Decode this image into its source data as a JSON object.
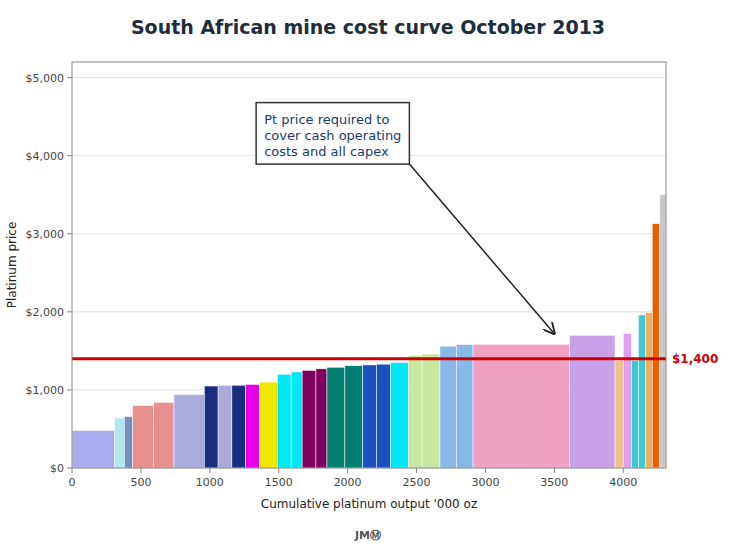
{
  "chart_data": {
    "type": "bar",
    "title": "South African mine cost curve October 2013",
    "x_label": "Cumulative platinum output '000 oz",
    "y_label": "Platinum price",
    "bins": [
      0,
      310,
      380,
      440,
      590,
      740,
      960,
      1060,
      1160,
      1260,
      1360,
      1490,
      1590,
      1670,
      1770,
      1850,
      1980,
      2110,
      2210,
      2310,
      2440,
      2540,
      2670,
      2790,
      2910,
      3610,
      3940,
      4000,
      4060,
      4110,
      4160,
      4210,
      4265,
      4310
    ],
    "values": [
      480,
      640,
      660,
      800,
      840,
      940,
      1050,
      1060,
      1060,
      1070,
      1100,
      1200,
      1230,
      1250,
      1270,
      1290,
      1310,
      1320,
      1330,
      1350,
      1440,
      1460,
      1560,
      1580,
      1585,
      1700,
      1380,
      1720,
      1380,
      1960,
      1990,
      3130,
      3500
    ],
    "colors": [
      "#aaaaee",
      "#b0e8f0",
      "#7090c0",
      "#e89090",
      "#e89090",
      "#aaaadd",
      "#1a2e80",
      "#aaaadd",
      "#1a2e80",
      "#e800e8",
      "#f0e800",
      "#00e8f8",
      "#00e8f8",
      "#800060",
      "#800060",
      "#008070",
      "#008070",
      "#1a50c0",
      "#1a50c0",
      "#00e8f8",
      "#c8e8a0",
      "#c8e8a0",
      "#88b8e8",
      "#88b8e8",
      "#f0a0c0",
      "#c8a0e8",
      "#f0c090",
      "#e0a0f0",
      "#40c8d0",
      "#40c8d0",
      "#e8b060",
      "#e86000",
      "#c8c8c8"
    ],
    "xlim": [
      0,
      4310
    ],
    "ylim": [
      0,
      5200
    ],
    "xticks": [
      0,
      500,
      1000,
      1500,
      2000,
      2500,
      3000,
      3500,
      4000
    ],
    "yticks": [
      {
        "value": 0,
        "label": "$0"
      },
      {
        "value": 1000,
        "label": "$1,000"
      },
      {
        "value": 2000,
        "label": "$2,000"
      },
      {
        "value": 3000,
        "label": "$3,000"
      },
      {
        "value": 4000,
        "label": "$4,000"
      },
      {
        "value": 5000,
        "label": "$5,000"
      }
    ],
    "grid": true,
    "annotations": [
      {
        "type": "hline",
        "y": 1400,
        "label": "$1,400",
        "color": "#cc0000"
      },
      {
        "type": "arrow",
        "text": "Pt price required to\ncover cash operating\ncosts and all capex",
        "x": 3500,
        "y": 1720
      }
    ],
    "footer": "JMⓂ"
  }
}
